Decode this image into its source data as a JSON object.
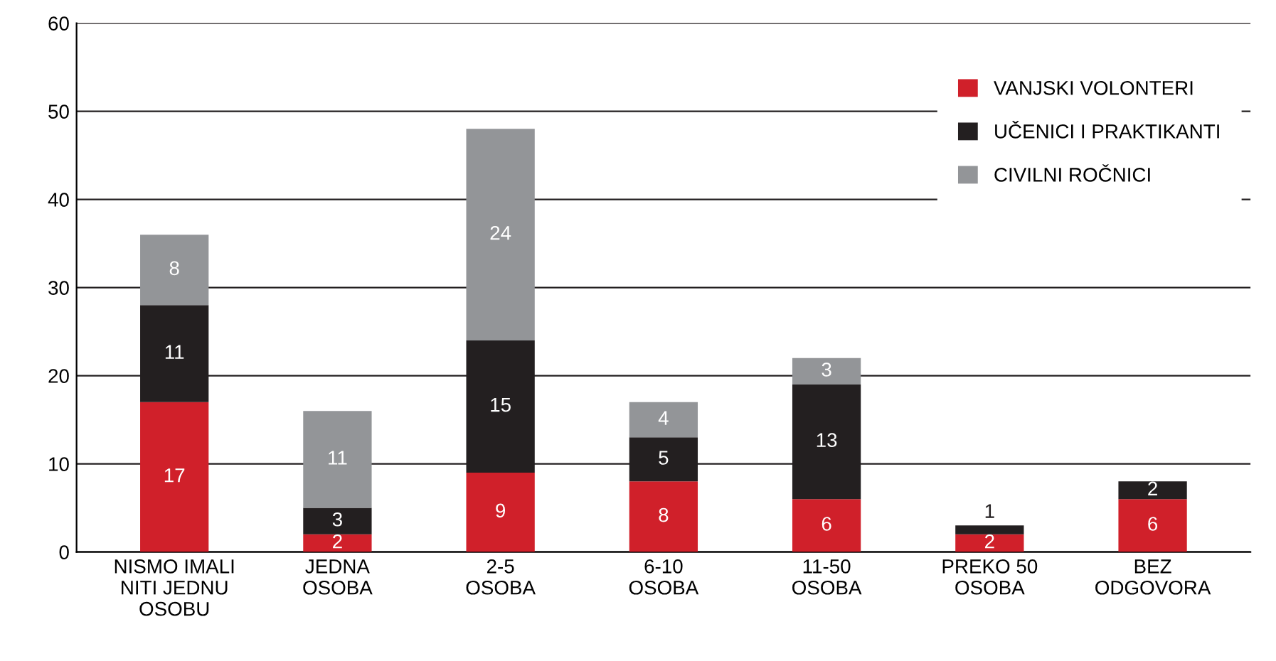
{
  "chart_data": {
    "type": "bar",
    "stacked": true,
    "categories": [
      "NISMO IMALI\nNITI JEDNU\nOSOBU",
      "JEDNA\nOSOBA",
      "2-5\nOSOBA",
      "6-10\nOSOBA",
      "11-50\nOSOBA",
      "PREKO 50\nOSOBA",
      "BEZ\nODGOVORA"
    ],
    "series": [
      {
        "name": "VANJSKI VOLONTERI",
        "color": "#d0202a",
        "values": [
          17,
          2,
          9,
          8,
          6,
          2,
          6
        ]
      },
      {
        "name": "UČENICI I PRAKTIKANTI",
        "color": "#231f20",
        "values": [
          11,
          3,
          15,
          5,
          13,
          1,
          2
        ]
      },
      {
        "name": "CIVILNI ROČNICI",
        "color": "#939598",
        "values": [
          8,
          11,
          24,
          4,
          3,
          null,
          null
        ]
      }
    ],
    "ylim": [
      0,
      60
    ],
    "yticks": [
      0,
      10,
      20,
      30,
      40,
      50,
      60
    ],
    "grid": "y",
    "legend": "top right",
    "data_labels": true
  }
}
